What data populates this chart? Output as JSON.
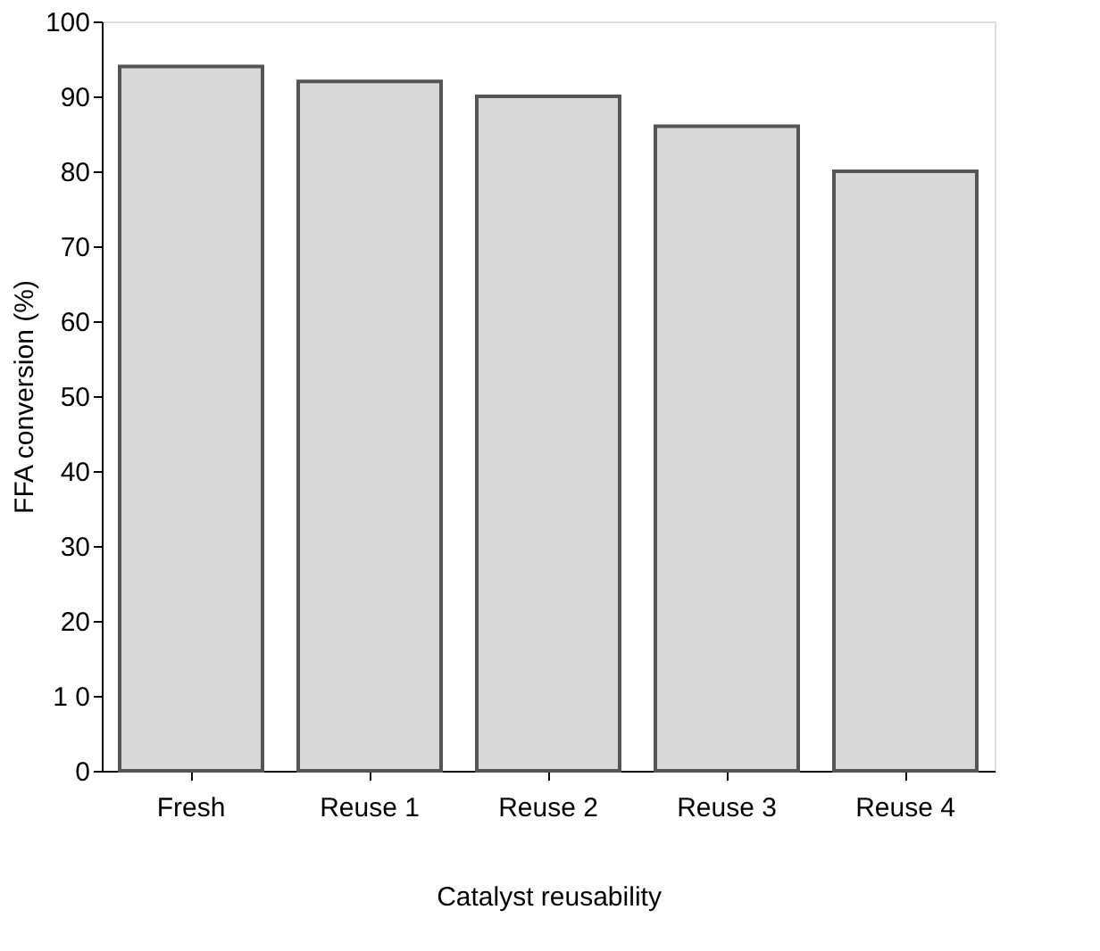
{
  "chart_data": {
    "type": "bar",
    "xlabel": "Catalyst reusability",
    "ylabel": "FFA conversion (%)",
    "categories": [
      "Fresh",
      "Reuse 1",
      "Reuse 2",
      "Reuse 3",
      "Reuse 4"
    ],
    "values": [
      94,
      92,
      90,
      86,
      80
    ],
    "color": "#d9d9d9",
    "ylim": [
      0,
      100
    ],
    "yticks": [
      0,
      {
        "value": 10,
        "label": "1 0"
      },
      20,
      30,
      40,
      50,
      60,
      70,
      80,
      90,
      100
    ],
    "grid": false
  }
}
